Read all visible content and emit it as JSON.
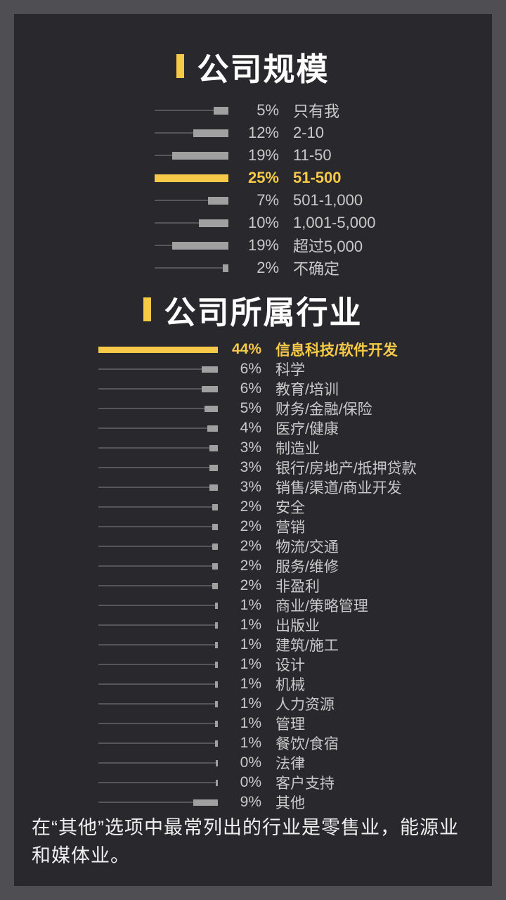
{
  "theme": {
    "frame_color": "#4f4f53",
    "background": "#29292d",
    "accent": "#f7c948",
    "bar_color": "#a0a0a0",
    "track_color": "#55555a",
    "text_color": "#c9c9c9"
  },
  "chart_data": [
    {
      "type": "bar",
      "orientation": "horizontal-right-anchored",
      "title": "公司规模",
      "unit": "%",
      "max_value": 25,
      "highlight_index": 3,
      "legend": "none",
      "grid": false,
      "categories": [
        "只有我",
        "2-10",
        "11-50",
        "51-500",
        "501-1,000",
        "1,001-5,000",
        "超过5,000",
        "不确定"
      ],
      "values": [
        5,
        12,
        19,
        25,
        7,
        10,
        19,
        2
      ]
    },
    {
      "type": "bar",
      "orientation": "horizontal-right-anchored",
      "title": "公司所属行业",
      "unit": "%",
      "max_value": 44,
      "highlight_index": 0,
      "legend": "none",
      "grid": false,
      "categories": [
        "信息科技/软件开发",
        "科学",
        "教育/培训",
        "财务/金融/保险",
        "医疗/健康",
        "制造业",
        "银行/房地产/抵押贷款",
        "销售/渠道/商业开发",
        "安全",
        "营销",
        "物流/交通",
        "服务/维修",
        "非盈利",
        "商业/策略管理",
        "出版业",
        "建筑/施工",
        "设计",
        "机械",
        "人力资源",
        "管理",
        "餐饮/食宿",
        "法律",
        "客户支持",
        "其他"
      ],
      "values": [
        44,
        6,
        6,
        5,
        4,
        3,
        3,
        3,
        2,
        2,
        2,
        2,
        2,
        1,
        1,
        1,
        1,
        1,
        1,
        1,
        1,
        0,
        0,
        9
      ]
    }
  ],
  "footer": {
    "text": "在“其他”选项中最常列出的行业是零售业，能源业和媒体业。"
  }
}
